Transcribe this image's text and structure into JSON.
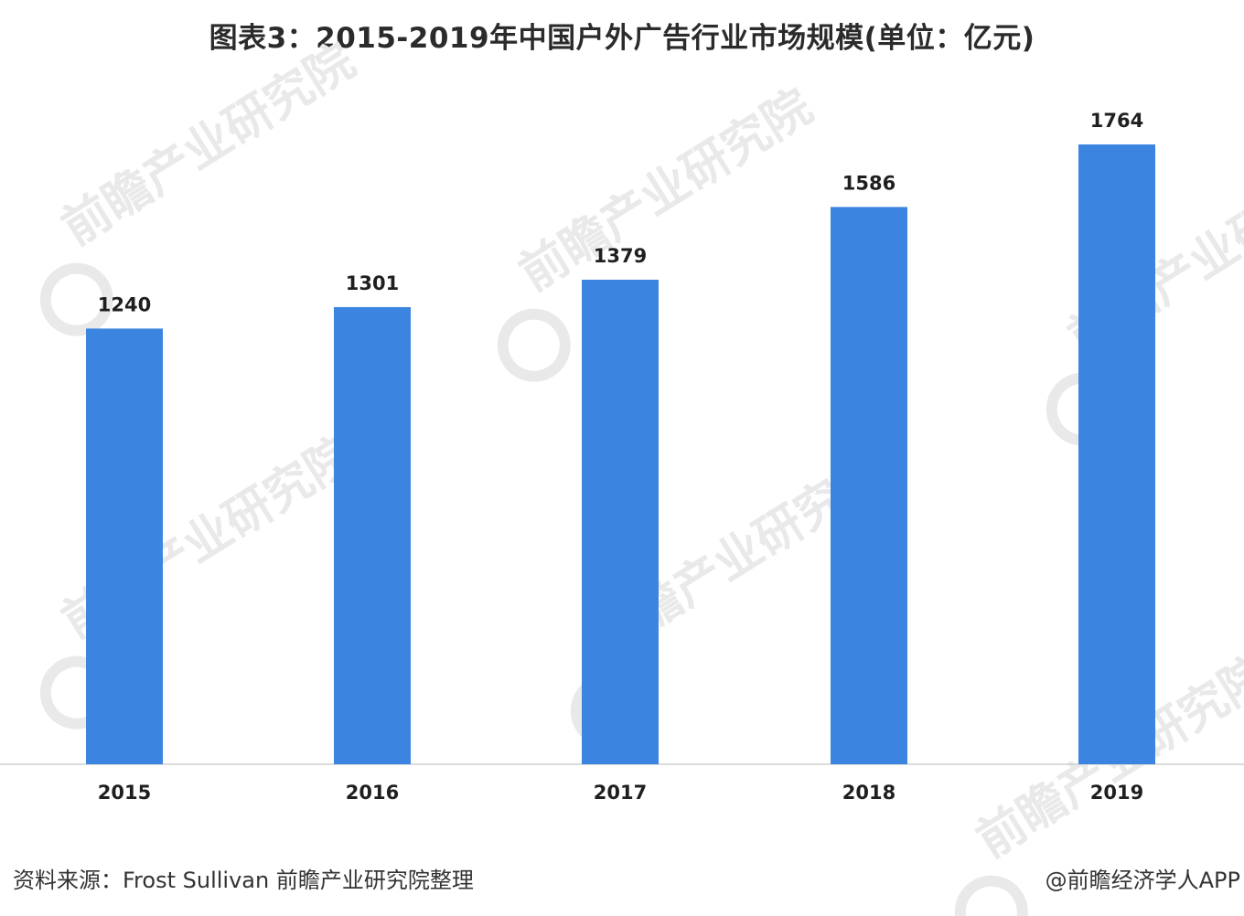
{
  "title": "图表3：2015-2019年中国户外广告行业市场规模(单位：亿元)",
  "chart_data": {
    "type": "bar",
    "categories": [
      "2015",
      "2016",
      "2017",
      "2018",
      "2019"
    ],
    "values": [
      1240,
      1301,
      1379,
      1586,
      1764
    ],
    "title": "图表3：2015-2019年中国户外广告行业市场规模(单位：亿元)",
    "xlabel": "",
    "ylabel": "",
    "ylim": [
      0,
      1900
    ],
    "bar_color": "#3b84e0",
    "grid": false,
    "legend": "none",
    "data_labels": true
  },
  "footer": {
    "source": "资料来源：Frost Sullivan 前瞻产业研究院整理",
    "credit": "@前瞻经济学人APP"
  },
  "watermark": {
    "text": "前瞻产业研究院",
    "color": "#e9e9e9"
  }
}
